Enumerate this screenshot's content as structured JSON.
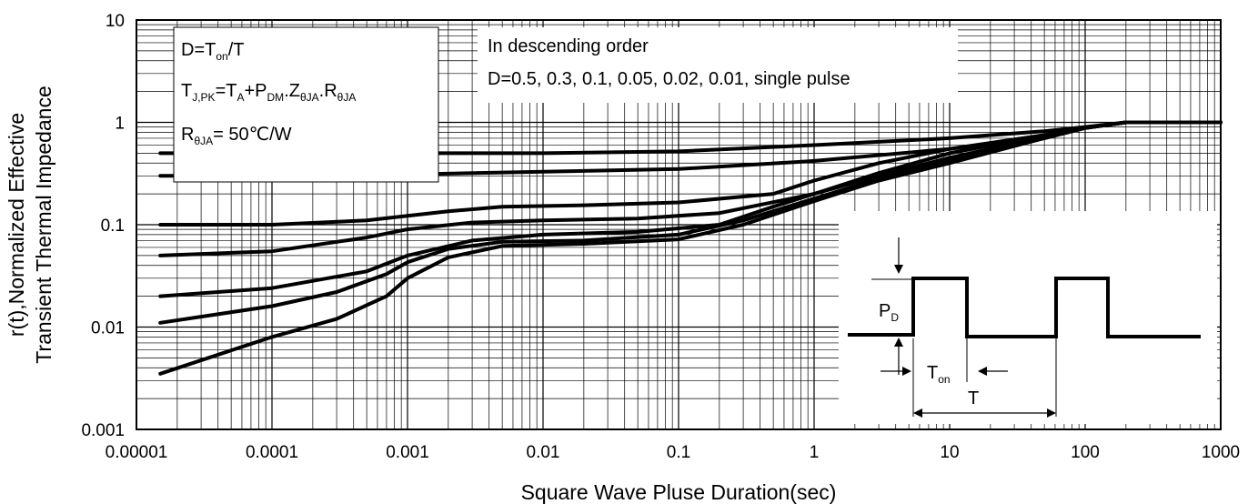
{
  "chart_data": {
    "type": "line",
    "xlabel": "Square Wave Pluse Duration(sec)",
    "ylabel_line1": "r(t),Normalized Effective",
    "ylabel_line2": "Transient Thermal Impedance",
    "x_scale": "log",
    "y_scale": "log",
    "xlim": [
      1e-05,
      1000
    ],
    "ylim": [
      0.001,
      10
    ],
    "x_ticks": [
      {
        "value": 1e-05,
        "label": "0.00001"
      },
      {
        "value": 0.0001,
        "label": "0.0001"
      },
      {
        "value": 0.001,
        "label": "0.001"
      },
      {
        "value": 0.01,
        "label": "0.01"
      },
      {
        "value": 0.1,
        "label": "0.1"
      },
      {
        "value": 1,
        "label": "1"
      },
      {
        "value": 10,
        "label": "10"
      },
      {
        "value": 100,
        "label": "100"
      },
      {
        "value": 1000,
        "label": "1000"
      }
    ],
    "y_ticks": [
      {
        "value": 0.001,
        "label": "0.001"
      },
      {
        "value": 0.01,
        "label": "0.01"
      },
      {
        "value": 0.1,
        "label": "0.1"
      },
      {
        "value": 1,
        "label": "1"
      },
      {
        "value": 10,
        "label": "10"
      }
    ],
    "grid": true,
    "series": [
      {
        "points": [
          [
            1.5e-05,
            0.5
          ],
          [
            0.0001,
            0.5
          ],
          [
            0.001,
            0.5
          ],
          [
            0.01,
            0.5
          ],
          [
            0.1,
            0.52
          ],
          [
            1,
            0.6
          ],
          [
            10,
            0.7
          ],
          [
            50,
            0.82
          ],
          [
            100,
            0.9
          ],
          [
            200,
            1.0
          ],
          [
            1000,
            1.0
          ]
        ]
      },
      {
        "points": [
          [
            1.5e-05,
            0.3
          ],
          [
            0.0001,
            0.3
          ],
          [
            0.001,
            0.31
          ],
          [
            0.01,
            0.33
          ],
          [
            0.1,
            0.35
          ],
          [
            1,
            0.42
          ],
          [
            10,
            0.55
          ],
          [
            50,
            0.75
          ],
          [
            100,
            0.88
          ],
          [
            200,
            1.0
          ],
          [
            1000,
            1.0
          ]
        ]
      },
      {
        "points": [
          [
            1.5e-05,
            0.1
          ],
          [
            0.0001,
            0.1
          ],
          [
            0.0005,
            0.11
          ],
          [
            0.002,
            0.135
          ],
          [
            0.005,
            0.15
          ],
          [
            0.02,
            0.155
          ],
          [
            0.1,
            0.165
          ],
          [
            0.5,
            0.2
          ],
          [
            1,
            0.27
          ],
          [
            3,
            0.4
          ],
          [
            10,
            0.55
          ],
          [
            50,
            0.75
          ],
          [
            100,
            0.88
          ],
          [
            200,
            1.0
          ],
          [
            1000,
            1.0
          ]
        ]
      },
      {
        "points": [
          [
            1.5e-05,
            0.05
          ],
          [
            0.0001,
            0.055
          ],
          [
            0.0005,
            0.075
          ],
          [
            0.001,
            0.09
          ],
          [
            0.003,
            0.105
          ],
          [
            0.01,
            0.11
          ],
          [
            0.05,
            0.115
          ],
          [
            0.2,
            0.13
          ],
          [
            1,
            0.2
          ],
          [
            3,
            0.32
          ],
          [
            10,
            0.5
          ],
          [
            50,
            0.75
          ],
          [
            100,
            0.88
          ],
          [
            200,
            1.0
          ],
          [
            1000,
            1.0
          ]
        ]
      },
      {
        "points": [
          [
            1.5e-05,
            0.02
          ],
          [
            0.0001,
            0.024
          ],
          [
            0.0005,
            0.035
          ],
          [
            0.001,
            0.05
          ],
          [
            0.003,
            0.07
          ],
          [
            0.01,
            0.08
          ],
          [
            0.05,
            0.085
          ],
          [
            0.2,
            0.1
          ],
          [
            0.5,
            0.15
          ],
          [
            1,
            0.2
          ],
          [
            3,
            0.3
          ],
          [
            10,
            0.45
          ],
          [
            50,
            0.72
          ],
          [
            100,
            0.88
          ],
          [
            200,
            1.0
          ],
          [
            1000,
            1.0
          ]
        ]
      },
      {
        "points": [
          [
            1.5e-05,
            0.011
          ],
          [
            0.0001,
            0.016
          ],
          [
            0.0003,
            0.022
          ],
          [
            0.0007,
            0.033
          ],
          [
            0.001,
            0.043
          ],
          [
            0.002,
            0.058
          ],
          [
            0.005,
            0.068
          ],
          [
            0.02,
            0.07
          ],
          [
            0.1,
            0.08
          ],
          [
            0.3,
            0.11
          ],
          [
            1,
            0.18
          ],
          [
            3,
            0.28
          ],
          [
            10,
            0.42
          ],
          [
            50,
            0.7
          ],
          [
            100,
            0.88
          ],
          [
            200,
            1.0
          ],
          [
            1000,
            1.0
          ]
        ]
      },
      {
        "points": [
          [
            1.5e-05,
            0.0035
          ],
          [
            0.0001,
            0.008
          ],
          [
            0.0003,
            0.012
          ],
          [
            0.0007,
            0.02
          ],
          [
            0.001,
            0.03
          ],
          [
            0.002,
            0.048
          ],
          [
            0.005,
            0.062
          ],
          [
            0.02,
            0.065
          ],
          [
            0.1,
            0.072
          ],
          [
            0.3,
            0.1
          ],
          [
            1,
            0.17
          ],
          [
            3,
            0.27
          ],
          [
            10,
            0.4
          ],
          [
            50,
            0.7
          ],
          [
            100,
            0.88
          ],
          [
            200,
            1.0
          ],
          [
            1000,
            1.0
          ]
        ]
      }
    ],
    "annotation_box_left": {
      "line1": {
        "main": "D=T",
        "sub": "on",
        "tail": "/T"
      },
      "line2": {
        "p1": "T",
        "s1": "J,PK",
        "p2": "=T",
        "s2": "A",
        "p3": "+P",
        "s3": "DM",
        "p4": ".Z",
        "s4": "θJA",
        "p5": ".R",
        "s5": "θJA"
      },
      "line3": {
        "main": "R",
        "sub": "θJA",
        "tail": "= 50℃/W"
      }
    },
    "annotation_box_right": {
      "line1": "In descending order",
      "line2": "D=0.5, 0.3, 0.1, 0.05, 0.02, 0.01, single pulse"
    },
    "inset": {
      "pdm_main": "P",
      "pdm_sub": "D",
      "ton_main": "T",
      "ton_sub": "on",
      "period_label": "T"
    }
  }
}
